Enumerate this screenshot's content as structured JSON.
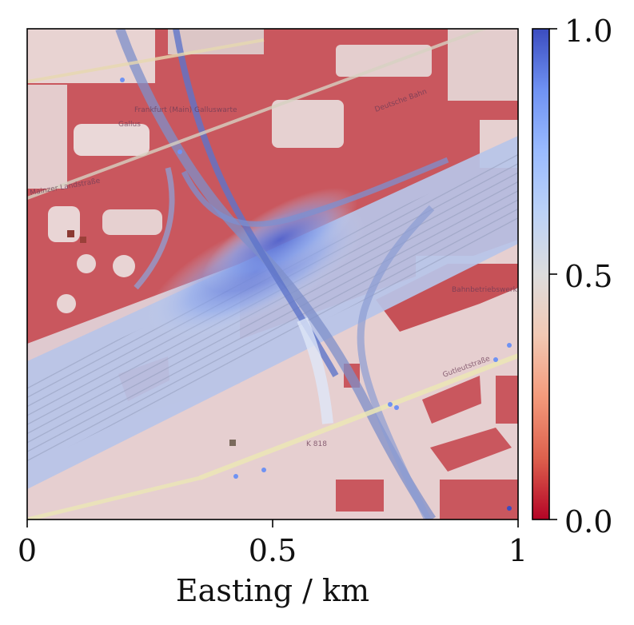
{
  "figure": {
    "xlabel": "Easting / km",
    "x_ticks": [
      "0",
      "0.5",
      "1"
    ],
    "colorbar_ticks": [
      "1.0",
      "0.5",
      "0.0"
    ]
  },
  "map_labels": {
    "district": "Gallus",
    "station": "Frankfurt (Main) Galluswarte",
    "street_left": "Mainzer Landstraße",
    "street_bottom": "Gutleutstraße",
    "road_ref": "K 818",
    "building": "Deutsche Bahn",
    "depot": "Bahnbetriebswerk"
  },
  "colors": {
    "cmap_low": "#b40426",
    "cmap_mid": "#dddddd",
    "cmap_high": "#3b4cc0"
  },
  "chart_data": {
    "type": "heatmap",
    "colormap": "coolwarm",
    "x": {
      "label": "Easting / km",
      "range": [
        0,
        1
      ],
      "ticks": [
        0,
        0.5,
        1
      ]
    },
    "colorbar": {
      "range": [
        0.0,
        1.0
      ],
      "ticks": [
        0.0,
        0.5,
        1.0
      ]
    },
    "background": "street map"
  }
}
